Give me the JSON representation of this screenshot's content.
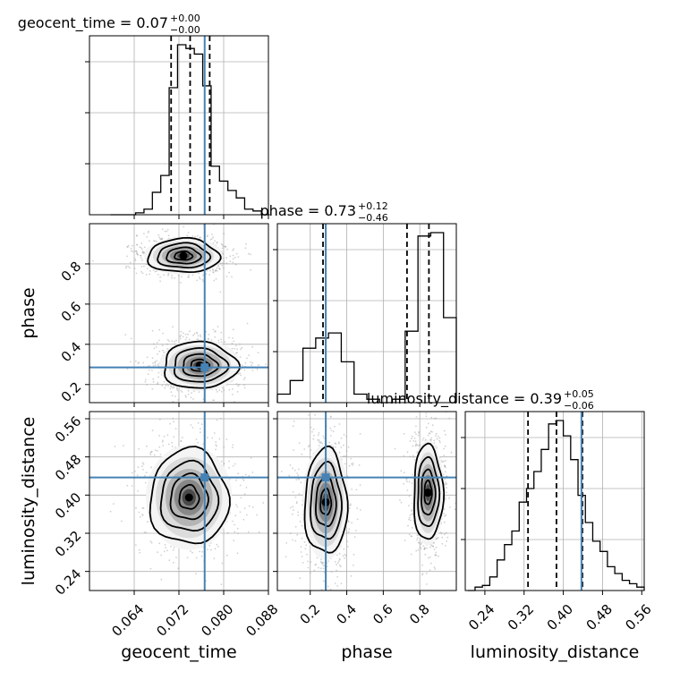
{
  "figure": {
    "type": "corner_plot",
    "colors": {
      "truth": "#4682b4",
      "contour": "#000000",
      "grid": "#b0b0b0",
      "axis": "#000000",
      "histogram": "#000000",
      "quantile": "#000000"
    }
  },
  "chart_data": [
    {
      "panel": "geocent_time_hist",
      "type": "histogram",
      "title_main": "geocent_time = 0.07",
      "title_plus": "+0.00",
      "title_minus": "−0.00",
      "x": [
        0.0605,
        0.062,
        0.0635,
        0.065,
        0.0665,
        0.068,
        0.0695,
        0.071,
        0.0725,
        0.074,
        0.0755,
        0.077,
        0.0785,
        0.08,
        0.0815,
        0.083,
        0.0845,
        0.086,
        0.0875
      ],
      "values": [
        0,
        0,
        0,
        0.01,
        0.03,
        0.12,
        0.21,
        0.68,
        0.91,
        0.89,
        0.86,
        0.69,
        0.26,
        0.18,
        0.13,
        0.09,
        0.03,
        0.02,
        0
      ],
      "quantiles": [
        0.0706,
        0.074,
        0.0775
      ],
      "truth": 0.0766,
      "xlim": [
        0.056,
        0.088
      ],
      "grid": true
    },
    {
      "panel": "phase_hist",
      "type": "histogram",
      "title_main": "phase = 0.73",
      "title_plus": "+0.12",
      "title_minus": "−0.46",
      "x": [
        0.055,
        0.125,
        0.195,
        0.265,
        0.335,
        0.405,
        0.475,
        0.545,
        0.615,
        0.685,
        0.755,
        0.825,
        0.895,
        0.965
      ],
      "values": [
        0.05,
        0.13,
        0.32,
        0.38,
        0.41,
        0.24,
        0.05,
        0.02,
        0,
        0.02,
        0.42,
        0.98,
        1.0,
        0.5
      ],
      "quantiles": [
        0.27,
        0.73,
        0.85
      ],
      "truth": 0.285,
      "xlim": [
        0.02,
        1.0
      ],
      "grid": true
    },
    {
      "panel": "luminosity_distance_hist",
      "type": "histogram",
      "title_main": "luminosity_distance = 0.39",
      "title_plus": "+0.05",
      "title_minus": "−0.06",
      "x": [
        0.2125,
        0.2275,
        0.2425,
        0.2575,
        0.2725,
        0.2875,
        0.3025,
        0.3175,
        0.3325,
        0.3475,
        0.3625,
        0.3775,
        0.3925,
        0.4075,
        0.4225,
        0.4375,
        0.4525,
        0.4675,
        0.4825,
        0.4975,
        0.5125,
        0.5275,
        0.5425,
        0.5575
      ],
      "values": [
        0,
        0.02,
        0.03,
        0.08,
        0.18,
        0.27,
        0.35,
        0.52,
        0.6,
        0.7,
        0.83,
        0.98,
        1.0,
        0.91,
        0.77,
        0.56,
        0.4,
        0.29,
        0.23,
        0.14,
        0.1,
        0.06,
        0.04,
        0.02
      ],
      "quantiles": [
        0.328,
        0.386,
        0.439
      ],
      "truth": 0.437,
      "xlim": [
        0.2,
        0.565
      ],
      "grid": true
    },
    {
      "panel": "phase_vs_geocent_time",
      "type": "contour_density",
      "xlabel": "",
      "ylabel": "phase",
      "xlim": [
        0.056,
        0.088
      ],
      "ylim": [
        0.11,
        1.0
      ],
      "yticks": [
        "0.2",
        "0.4",
        "0.6",
        "0.8"
      ],
      "modes": [
        {
          "x": 0.0728,
          "y": 0.84,
          "sx": 0.0032,
          "sy": 0.042
        },
        {
          "x": 0.0757,
          "y": 0.295,
          "sx": 0.0033,
          "sy": 0.058
        }
      ],
      "truth": {
        "x": 0.0766,
        "y": 0.285
      },
      "grid": true
    },
    {
      "panel": "luminosity_distance_vs_geocent_time",
      "type": "contour_density",
      "xlabel": "geocent_time",
      "ylabel": "luminosity_distance",
      "xlim": [
        0.056,
        0.088
      ],
      "ylim": [
        0.2,
        0.575
      ],
      "xticks": [
        "0.064",
        "0.072",
        "0.080",
        "0.088"
      ],
      "yticks": [
        "0.24",
        "0.32",
        "0.40",
        "0.48",
        "0.56"
      ],
      "modes": [
        {
          "x": 0.0738,
          "y": 0.395,
          "sx": 0.0035,
          "sy": 0.05
        }
      ],
      "truth": {
        "x": 0.0766,
        "y": 0.437
      },
      "grid": true
    },
    {
      "panel": "luminosity_distance_vs_phase",
      "type": "contour_density",
      "xlabel": "phase",
      "ylabel": "",
      "xlim": [
        0.02,
        1.0
      ],
      "ylim": [
        0.2,
        0.575
      ],
      "xticks": [
        "0.2",
        "0.4",
        "0.6",
        "0.8"
      ],
      "modes": [
        {
          "x": 0.285,
          "y": 0.385,
          "sx": 0.058,
          "sy": 0.055
        },
        {
          "x": 0.845,
          "y": 0.405,
          "sx": 0.04,
          "sy": 0.05
        }
      ],
      "truth": {
        "x": 0.285,
        "y": 0.437
      },
      "grid": true
    }
  ],
  "bottom_ticks_lumi": [
    "0.24",
    "0.32",
    "0.40",
    "0.48",
    "0.56"
  ]
}
